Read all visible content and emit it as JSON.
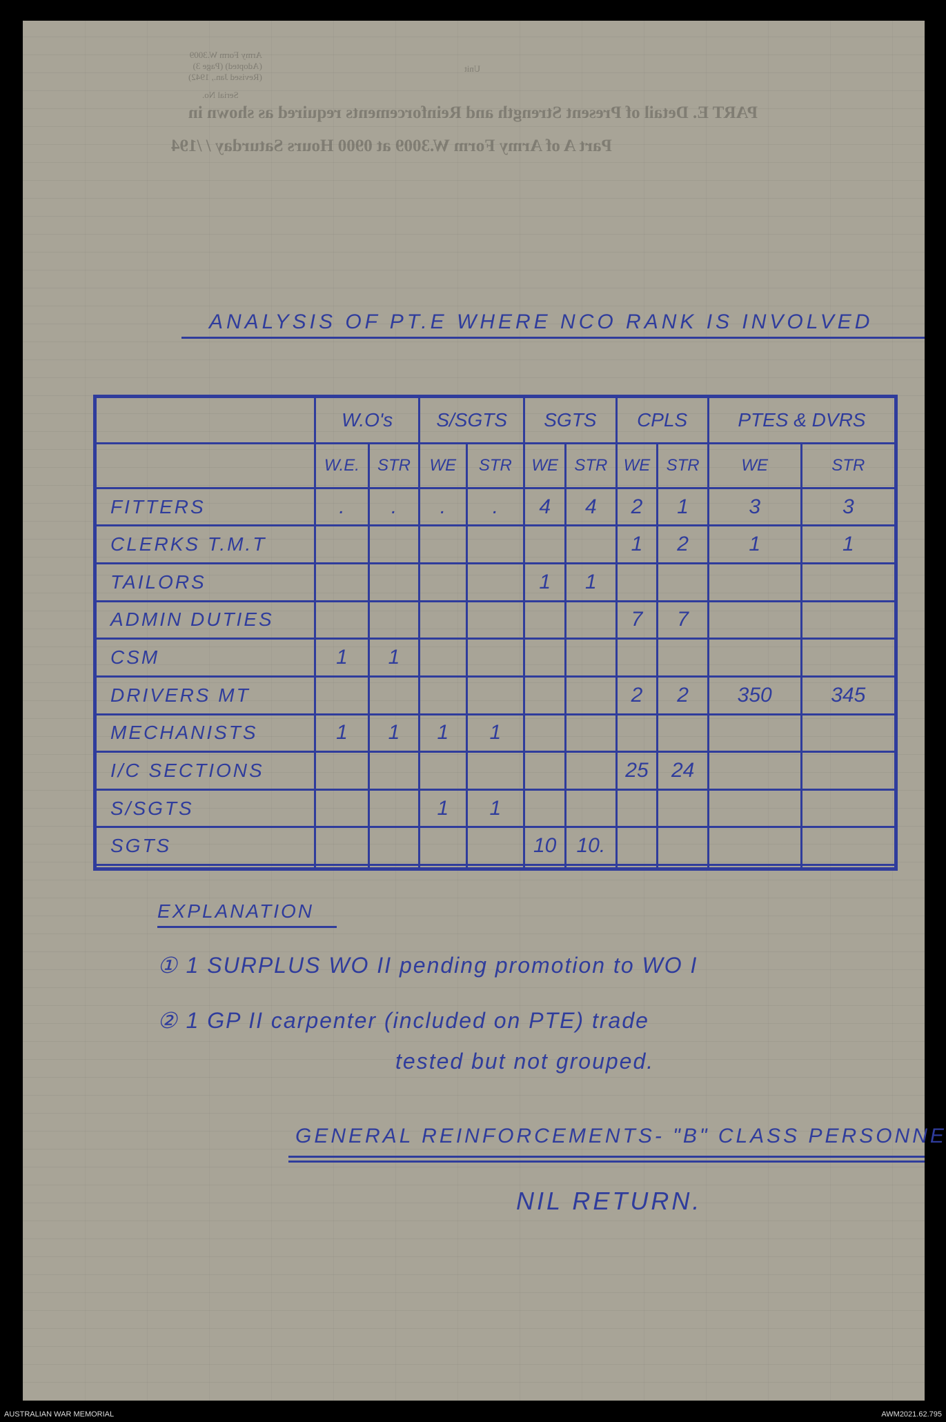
{
  "bleed_through": {
    "form_ref": [
      "Army Form W.3009",
      "(Adopted) (Page 3)",
      "(Revised Jan., 1942)"
    ],
    "serial_no": "Serial No.",
    "unit": "Unit",
    "heading_line1": "PART E. Detail of Present Strength and Reinforcements required as shown in",
    "heading_line2": "Part A of Army Form W.3009 at 0900 Hours Saturday          /      /194"
  },
  "title": "ANALYSIS OF PT.E WHERE NCO RANK IS INVOLVED",
  "table": {
    "groups": [
      "W.O's",
      "S/SGTS",
      "SGTS",
      "CPLS",
      "PTES & DVRS"
    ],
    "subheaders": [
      "W.E.",
      "STR",
      "WE",
      "STR",
      "WE",
      "STR",
      "WE",
      "STR",
      "WE",
      "STR"
    ],
    "rows": [
      {
        "label": "FITTERS",
        "cells": [
          ".",
          ".",
          ".",
          ".",
          "4",
          "4",
          "2",
          "1",
          "3",
          "3"
        ]
      },
      {
        "label": "CLERKS T.M.T",
        "cells": [
          "",
          "",
          "",
          "",
          "",
          "",
          "1",
          "2",
          "1",
          "1"
        ]
      },
      {
        "label": "TAILORS",
        "cells": [
          "",
          "",
          "",
          "",
          "1",
          "1",
          "",
          "",
          "",
          ""
        ]
      },
      {
        "label": "ADMIN DUTIES",
        "cells": [
          "",
          "",
          "",
          "",
          "",
          "",
          "7",
          "7",
          "",
          ""
        ]
      },
      {
        "label": "CSM",
        "cells": [
          "1",
          "1",
          "",
          "",
          "",
          "",
          "",
          "",
          "",
          ""
        ]
      },
      {
        "label": "DRIVERS MT",
        "cells": [
          "",
          "",
          "",
          "",
          "",
          "",
          "2",
          "2",
          "350",
          "345"
        ]
      },
      {
        "label": "MECHANISTS",
        "cells": [
          "1",
          "1",
          "1",
          "1",
          "",
          "",
          "",
          "",
          "",
          ""
        ]
      },
      {
        "label": "I/C SECTIONS",
        "cells": [
          "",
          "",
          "",
          "",
          "",
          "",
          "25",
          "24",
          "",
          ""
        ]
      },
      {
        "label": "S/SGTS",
        "cells": [
          "",
          "",
          "1",
          "1",
          "",
          "",
          "",
          "",
          "",
          ""
        ]
      },
      {
        "label": "SGTS",
        "cells": [
          "",
          "",
          "",
          "",
          "10",
          "10.",
          "",
          "",
          "",
          ""
        ]
      },
      {
        "label": "",
        "cells": [
          "",
          "",
          "",
          "",
          "",
          "",
          "",
          "",
          "",
          ""
        ]
      }
    ]
  },
  "explanation": {
    "heading": "EXPLANATION",
    "items": [
      {
        "marker": "①",
        "text": "1 SURPLUS WO II pending promotion to WO I"
      },
      {
        "marker": "②",
        "text": "1 GP II carpenter (included on PTE) trade",
        "cont": "tested but not grouped."
      }
    ]
  },
  "general": "GENERAL REINFORCEMENTS- \"B\" CLASS PERSONNEL",
  "nil": "NIL RETURN.",
  "footer": {
    "left": "AUSTRALIAN WAR MEMORIAL",
    "right": "AWM2021.62.795"
  },
  "colors": {
    "ink": "#2f3c9c",
    "paper": "#a8a497"
  }
}
